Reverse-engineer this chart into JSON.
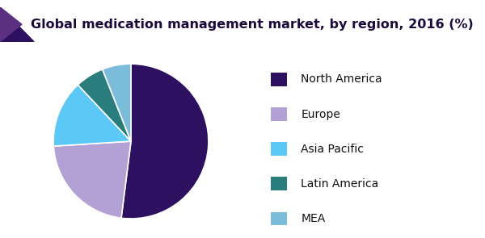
{
  "title": "Global medication management market, by region, 2016 (%)",
  "title_fontsize": 11.5,
  "title_color": "#1a0a3c",
  "slices": [
    {
      "label": "North America",
      "value": 52,
      "color": "#2d1060"
    },
    {
      "label": "Europe",
      "value": 22,
      "color": "#b3a0d4"
    },
    {
      "label": "Asia Pacific",
      "value": 14,
      "color": "#5bc8f5"
    },
    {
      "label": "Latin America",
      "value": 6,
      "color": "#2a7d7d"
    },
    {
      "label": "MEA",
      "value": 6,
      "color": "#7bbcdb"
    }
  ],
  "background_color": "#ffffff",
  "header_bg": "#f5f5fa",
  "header_top_bar_color": "#7b4fa0",
  "header_bottom_bar_color": "#5b3080",
  "triangle_dark": "#2d1060",
  "triangle_mid": "#5b3080",
  "startangle": 90,
  "legend_fontsize": 10,
  "legend_color": "#111111"
}
